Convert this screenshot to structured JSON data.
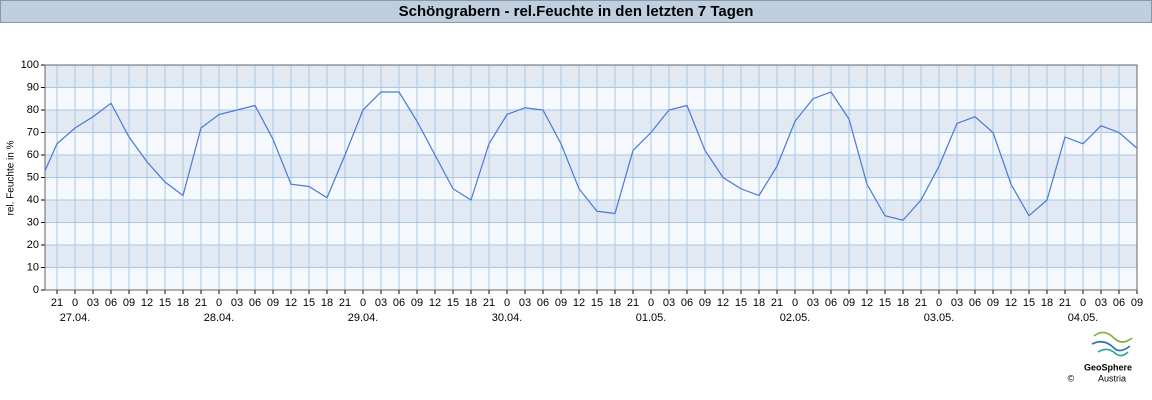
{
  "chart_data": {
    "type": "line",
    "title": "Schöngrabern - rel.Feuchte in den letzten 7 Tagen",
    "ylabel": "rel. Feuchte in %",
    "logo": [
      "GeoSphere",
      "Austria"
    ],
    "copyright": "©",
    "grid": true,
    "xlim": [
      0,
      182
    ],
    "ylim": [
      0,
      100
    ],
    "yticks": [
      0,
      10,
      20,
      30,
      40,
      50,
      60,
      70,
      80,
      90,
      100
    ],
    "xticks": [
      {
        "value": 2,
        "label": "21"
      },
      {
        "value": 5,
        "label": "0"
      },
      {
        "value": 8,
        "label": "03"
      },
      {
        "value": 11,
        "label": "06"
      },
      {
        "value": 14,
        "label": "09"
      },
      {
        "value": 17,
        "label": "12"
      },
      {
        "value": 20,
        "label": "15"
      },
      {
        "value": 23,
        "label": "18"
      },
      {
        "value": 26,
        "label": "21"
      },
      {
        "value": 29,
        "label": "0"
      },
      {
        "value": 32,
        "label": "03"
      },
      {
        "value": 35,
        "label": "06"
      },
      {
        "value": 38,
        "label": "09"
      },
      {
        "value": 41,
        "label": "12"
      },
      {
        "value": 44,
        "label": "15"
      },
      {
        "value": 47,
        "label": "18"
      },
      {
        "value": 50,
        "label": "21"
      },
      {
        "value": 53,
        "label": "0"
      },
      {
        "value": 56,
        "label": "03"
      },
      {
        "value": 59,
        "label": "06"
      },
      {
        "value": 62,
        "label": "09"
      },
      {
        "value": 65,
        "label": "12"
      },
      {
        "value": 68,
        "label": "15"
      },
      {
        "value": 71,
        "label": "18"
      },
      {
        "value": 74,
        "label": "21"
      },
      {
        "value": 77,
        "label": "0"
      },
      {
        "value": 80,
        "label": "03"
      },
      {
        "value": 83,
        "label": "06"
      },
      {
        "value": 86,
        "label": "09"
      },
      {
        "value": 89,
        "label": "12"
      },
      {
        "value": 92,
        "label": "15"
      },
      {
        "value": 95,
        "label": "18"
      },
      {
        "value": 98,
        "label": "21"
      },
      {
        "value": 101,
        "label": "0"
      },
      {
        "value": 104,
        "label": "03"
      },
      {
        "value": 107,
        "label": "06"
      },
      {
        "value": 110,
        "label": "09"
      },
      {
        "value": 113,
        "label": "12"
      },
      {
        "value": 116,
        "label": "15"
      },
      {
        "value": 119,
        "label": "18"
      },
      {
        "value": 122,
        "label": "21"
      },
      {
        "value": 125,
        "label": "0"
      },
      {
        "value": 128,
        "label": "03"
      },
      {
        "value": 131,
        "label": "06"
      },
      {
        "value": 134,
        "label": "09"
      },
      {
        "value": 137,
        "label": "12"
      },
      {
        "value": 140,
        "label": "15"
      },
      {
        "value": 143,
        "label": "18"
      },
      {
        "value": 146,
        "label": "21"
      },
      {
        "value": 149,
        "label": "0"
      },
      {
        "value": 152,
        "label": "03"
      },
      {
        "value": 155,
        "label": "06"
      },
      {
        "value": 158,
        "label": "09"
      },
      {
        "value": 161,
        "label": "12"
      },
      {
        "value": 164,
        "label": "15"
      },
      {
        "value": 167,
        "label": "18"
      },
      {
        "value": 170,
        "label": "21"
      },
      {
        "value": 173,
        "label": "0"
      },
      {
        "value": 176,
        "label": "03"
      },
      {
        "value": 179,
        "label": "06"
      },
      {
        "value": 182,
        "label": "09"
      }
    ],
    "date_labels": [
      {
        "value": 5,
        "label": "27.04."
      },
      {
        "value": 29,
        "label": "28.04."
      },
      {
        "value": 53,
        "label": "29.04."
      },
      {
        "value": 77,
        "label": "30.04."
      },
      {
        "value": 101,
        "label": "01.05."
      },
      {
        "value": 125,
        "label": "02.05."
      },
      {
        "value": 149,
        "label": "03.05."
      },
      {
        "value": 173,
        "label": "04.05."
      }
    ],
    "series": [
      {
        "name": "rel. Feuchte",
        "color": "#4a78d8",
        "x": [
          0,
          2,
          5,
          8,
          11,
          14,
          17,
          20,
          23,
          26,
          29,
          32,
          35,
          38,
          41,
          44,
          47,
          50,
          53,
          56,
          59,
          62,
          65,
          68,
          71,
          74,
          77,
          80,
          83,
          86,
          89,
          92,
          95,
          98,
          101,
          104,
          107,
          110,
          113,
          116,
          119,
          122,
          125,
          128,
          131,
          134,
          137,
          140,
          143,
          146,
          149,
          152,
          155,
          158,
          161,
          164,
          167,
          170,
          173,
          176,
          179,
          182
        ],
        "values": [
          53,
          65,
          72,
          77,
          83,
          68,
          57,
          48,
          42,
          72,
          78,
          80,
          82,
          67,
          47,
          46,
          41,
          60,
          80,
          88,
          88,
          75,
          60,
          45,
          40,
          65,
          78,
          81,
          80,
          65,
          45,
          35,
          34,
          62,
          70,
          80,
          82,
          62,
          50,
          45,
          42,
          55,
          75,
          85,
          88,
          76,
          47,
          33,
          31,
          40,
          55,
          74,
          77,
          70,
          47,
          33,
          40,
          68,
          65,
          73,
          70,
          63
        ]
      }
    ]
  }
}
